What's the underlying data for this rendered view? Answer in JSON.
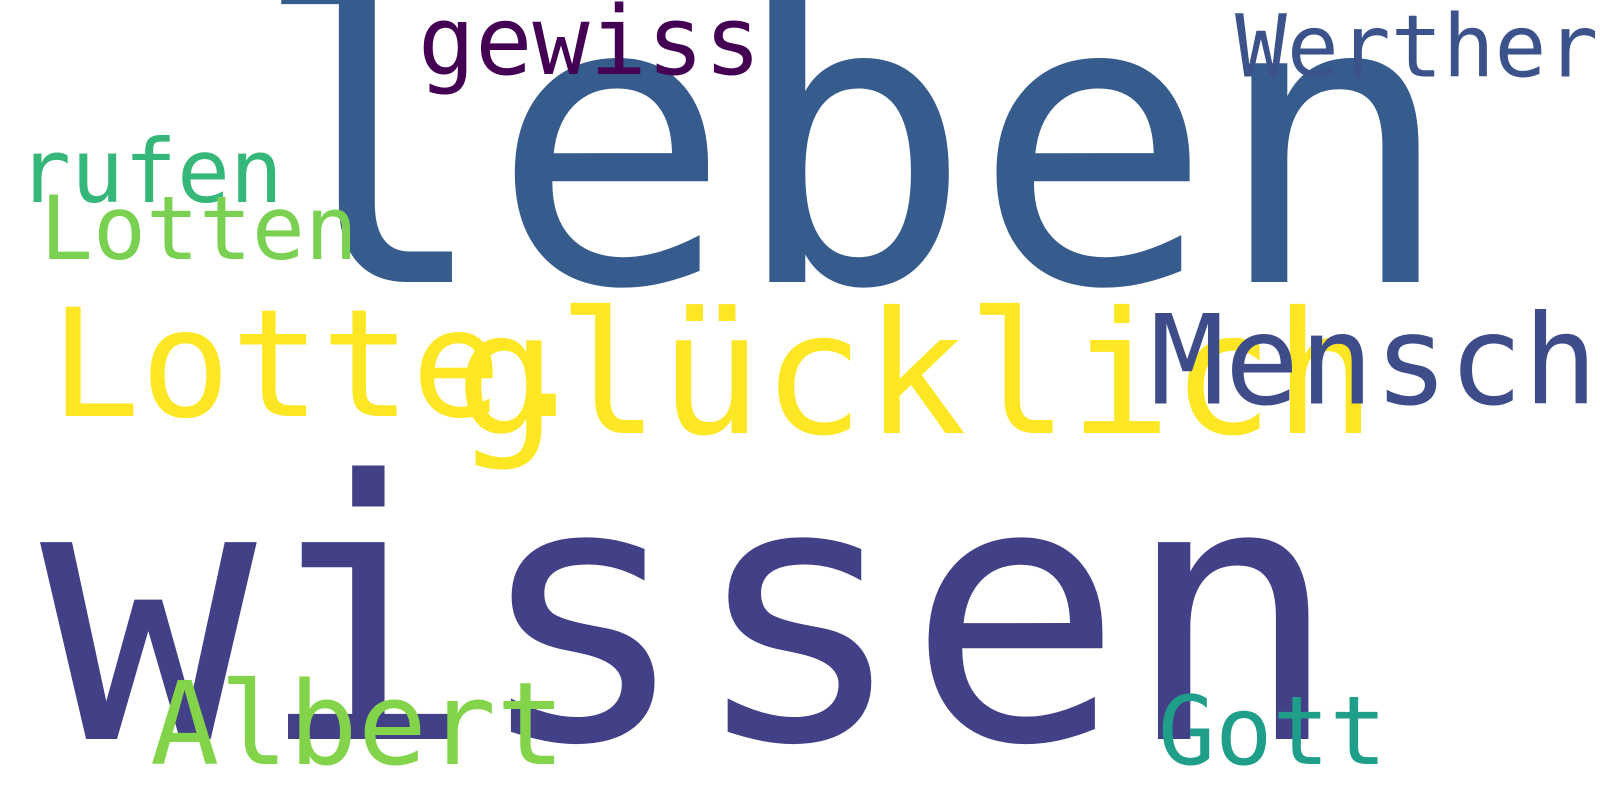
{
  "words": [
    {
      "key": "leben",
      "text": "leben",
      "color": "#365c8d"
    },
    {
      "key": "wissen",
      "text": "wissen",
      "color": "#424086"
    },
    {
      "key": "lotte",
      "text": "Lotte.",
      "color": "#fde725"
    },
    {
      "key": "gluecklich",
      "text": "glücklich",
      "color": "#fde725"
    },
    {
      "key": "mensch",
      "text": "Mensch",
      "color": "#3e4c8a"
    },
    {
      "key": "gewiss",
      "text": "gewiss",
      "color": "#440154"
    },
    {
      "key": "werther",
      "text": "Werther",
      "color": "#3b528b"
    },
    {
      "key": "rufen",
      "text": "rufen",
      "color": "#35b779"
    },
    {
      "key": "lotten",
      "text": "Lotten",
      "color": "#7ad151"
    },
    {
      "key": "albert",
      "text": "Albert",
      "color": "#84d44b"
    },
    {
      "key": "gott",
      "text": "Gott",
      "color": "#1f9e89"
    }
  ]
}
